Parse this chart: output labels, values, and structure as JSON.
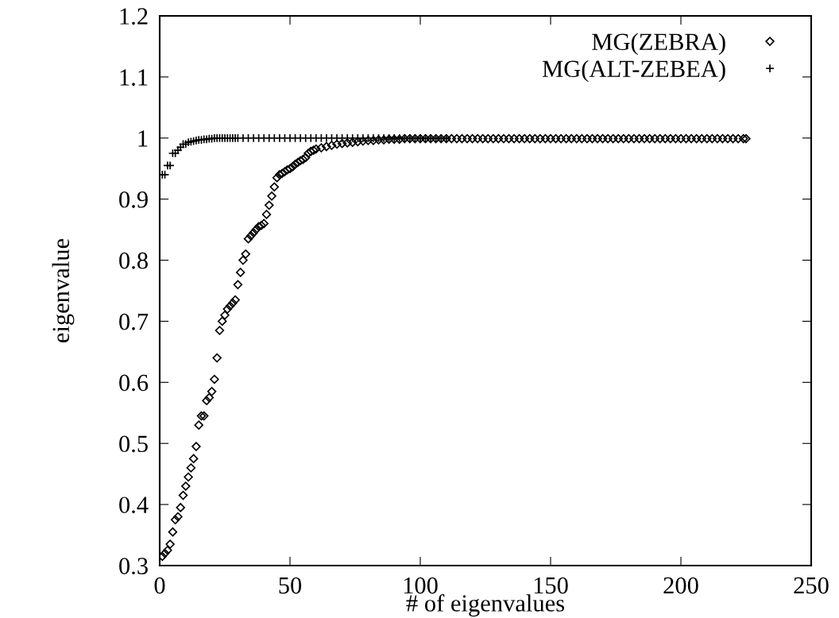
{
  "chart_data": {
    "type": "scatter",
    "xlabel": "# of eigenvalues",
    "ylabel": "eigenvalue",
    "xlim": [
      0,
      250
    ],
    "xticks": [
      0,
      50,
      100,
      150,
      200,
      250
    ],
    "ylim": [
      0.3,
      1.2
    ],
    "yticks": [
      0.3,
      0.4,
      0.5,
      0.6,
      0.7,
      0.8,
      0.9,
      1,
      1.1,
      1.2
    ],
    "grid": false,
    "legend": "top right",
    "series": [
      {
        "name": "MG(ZEBRA)",
        "color": "#000000",
        "marker": "diamond",
        "x": [
          1,
          2,
          3,
          4,
          5,
          6,
          7,
          8,
          9,
          10,
          11,
          12,
          13,
          14,
          15,
          16,
          17,
          18,
          19,
          20,
          21,
          22,
          23,
          24,
          25,
          26,
          27,
          28,
          29,
          30,
          31,
          32,
          33,
          34,
          35,
          36,
          37,
          38,
          39,
          40,
          41,
          42,
          43,
          44,
          45,
          46,
          47,
          48,
          49,
          50,
          51,
          52,
          53,
          54,
          55,
          56,
          57,
          58,
          59,
          60,
          62,
          64,
          66,
          68,
          70,
          72,
          74,
          76,
          78,
          80,
          82,
          84,
          86,
          88,
          90,
          92,
          94,
          96,
          98,
          100,
          102,
          104,
          106,
          108,
          110,
          112,
          114,
          116,
          118,
          120,
          122,
          124,
          126,
          128,
          130,
          132,
          134,
          136,
          138,
          140,
          142,
          144,
          146,
          148,
          150,
          152,
          154,
          156,
          158,
          160,
          162,
          164,
          166,
          168,
          170,
          172,
          174,
          176,
          178,
          180,
          182,
          184,
          186,
          188,
          190,
          192,
          194,
          196,
          198,
          200,
          202,
          204,
          206,
          208,
          210,
          212,
          214,
          216,
          218,
          220,
          222,
          224,
          225
        ],
        "values": [
          0.315,
          0.32,
          0.325,
          0.335,
          0.355,
          0.375,
          0.38,
          0.395,
          0.415,
          0.43,
          0.445,
          0.46,
          0.475,
          0.495,
          0.53,
          0.545,
          0.545,
          0.57,
          0.575,
          0.585,
          0.605,
          0.64,
          0.685,
          0.7,
          0.71,
          0.72,
          0.725,
          0.73,
          0.735,
          0.76,
          0.78,
          0.8,
          0.81,
          0.835,
          0.84,
          0.845,
          0.85,
          0.855,
          0.857,
          0.86,
          0.875,
          0.89,
          0.905,
          0.92,
          0.935,
          0.94,
          0.942,
          0.945,
          0.948,
          0.95,
          0.953,
          0.957,
          0.96,
          0.963,
          0.965,
          0.968,
          0.975,
          0.978,
          0.98,
          0.982,
          0.984,
          0.986,
          0.988,
          0.99,
          0.991,
          0.992,
          0.993,
          0.994,
          0.995,
          0.996,
          0.996,
          0.997,
          0.997,
          0.998,
          0.998,
          0.998,
          0.999,
          0.999,
          0.999,
          0.999,
          0.999,
          0.999,
          0.999,
          0.999,
          0.999,
          0.999,
          0.999,
          0.999,
          0.999,
          0.999,
          0.999,
          0.999,
          0.999,
          0.999,
          0.999,
          0.999,
          0.999,
          0.999,
          0.999,
          0.999,
          0.999,
          0.999,
          0.999,
          0.999,
          0.999,
          0.999,
          0.999,
          0.999,
          0.999,
          0.999,
          0.999,
          0.999,
          0.999,
          0.999,
          0.999,
          0.999,
          0.999,
          0.999,
          0.999,
          0.999,
          0.999,
          0.999,
          0.999,
          0.999,
          0.999,
          0.999,
          0.999,
          0.999,
          0.999,
          0.999,
          0.999,
          0.999,
          0.999,
          0.999,
          0.999,
          0.999,
          0.999,
          0.999,
          0.999,
          0.999,
          0.999,
          0.999,
          0.999
        ]
      },
      {
        "name": "MG(ALT-ZEBEA)",
        "color": "#000000",
        "marker": "cross",
        "x": [
          1,
          2,
          3,
          4,
          5,
          6,
          7,
          8,
          9,
          10,
          11,
          12,
          13,
          14,
          15,
          16,
          17,
          18,
          19,
          20,
          21,
          22,
          23,
          24,
          25,
          26,
          27,
          28,
          29,
          30,
          32,
          34,
          36,
          38,
          40,
          42,
          44,
          46,
          48,
          50,
          52,
          54,
          56,
          58,
          60,
          62,
          64,
          66,
          68,
          70,
          72,
          74,
          76,
          78,
          80,
          82,
          84,
          86,
          88,
          90,
          92,
          94,
          96,
          98,
          100,
          102,
          104,
          106,
          108,
          110
        ],
        "values": [
          0.94,
          0.94,
          0.955,
          0.955,
          0.975,
          0.975,
          0.98,
          0.985,
          0.99,
          0.99,
          0.993,
          0.994,
          0.995,
          0.996,
          0.997,
          0.997,
          0.998,
          0.998,
          0.999,
          0.999,
          1,
          1,
          1,
          1,
          1,
          1,
          1,
          1,
          1,
          1,
          1,
          1,
          1,
          1,
          1,
          1,
          1,
          1,
          1,
          1,
          1,
          1,
          1,
          1,
          1,
          1,
          1,
          1,
          1,
          1,
          1,
          1,
          1,
          1,
          1,
          1,
          1,
          1,
          1,
          1,
          1,
          1,
          1,
          1,
          1,
          1,
          1,
          1,
          1,
          1
        ]
      }
    ]
  }
}
